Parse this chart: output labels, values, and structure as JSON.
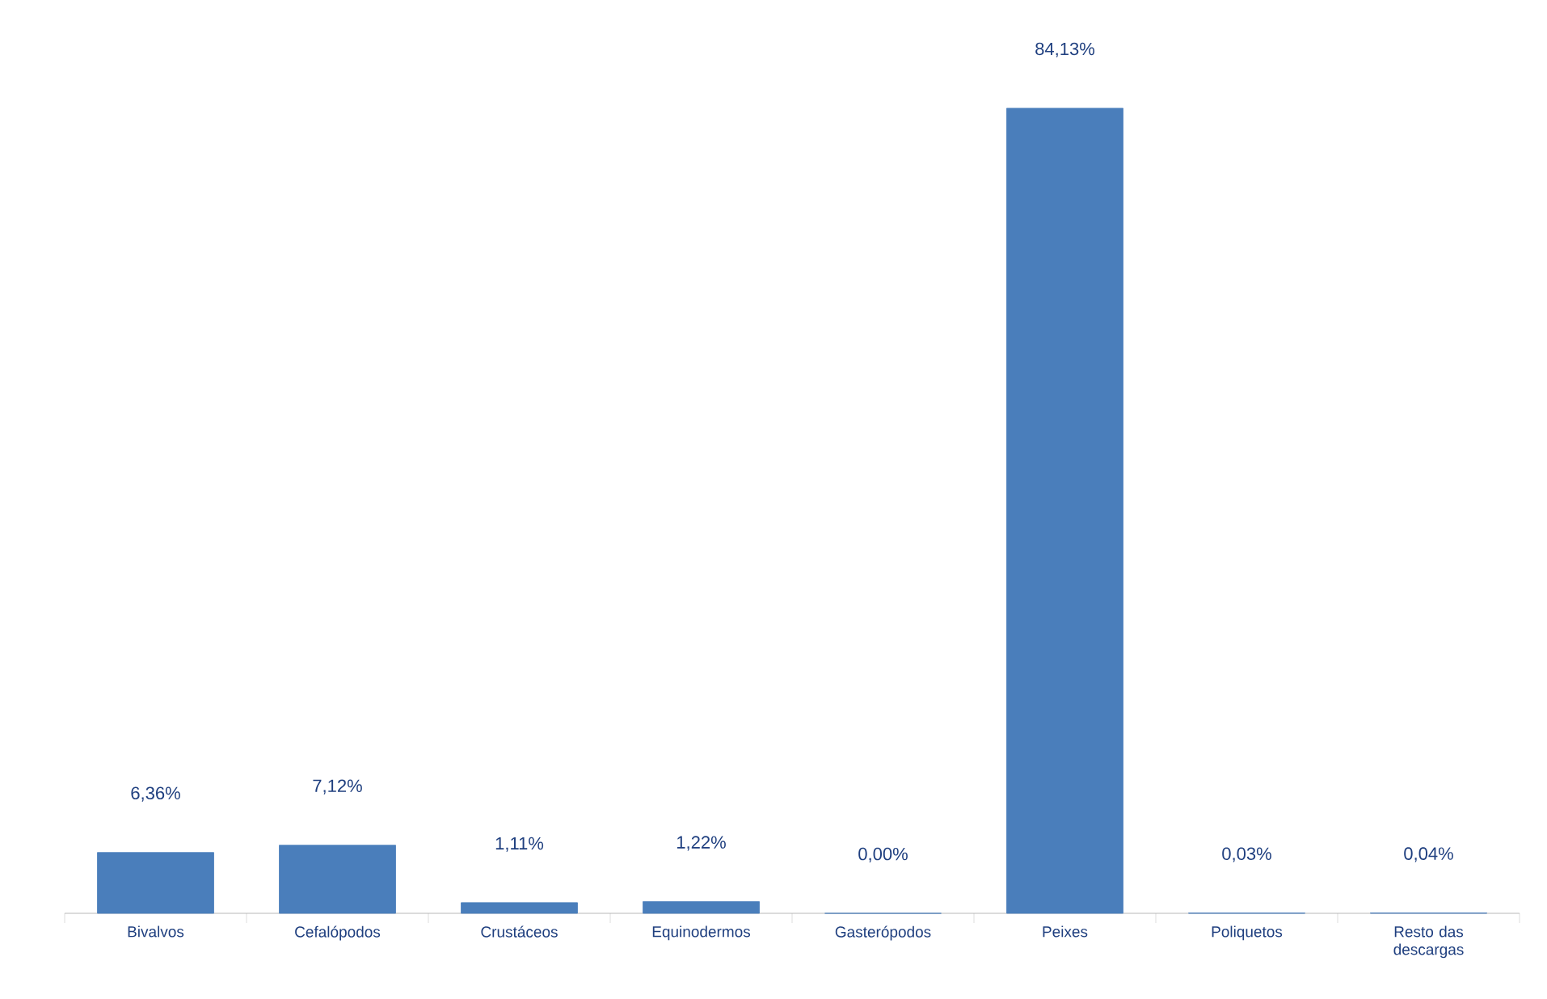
{
  "chart_data": {
    "type": "bar",
    "categories": [
      "Bivalvos",
      "Cefalópodos",
      "Crustáceos",
      "Equinodermos",
      "Gasterópodos",
      "Peixes",
      "Poliquetos",
      "Resto das descargas"
    ],
    "values": [
      6.36,
      7.12,
      1.11,
      1.22,
      0.0,
      84.13,
      0.03,
      0.04
    ],
    "value_labels": [
      "6,36%",
      "7,12%",
      "1,11%",
      "1,22%",
      "0,00%",
      "84,13%",
      "0,03%",
      "0,04%"
    ],
    "color": "#4a7ebb"
  }
}
